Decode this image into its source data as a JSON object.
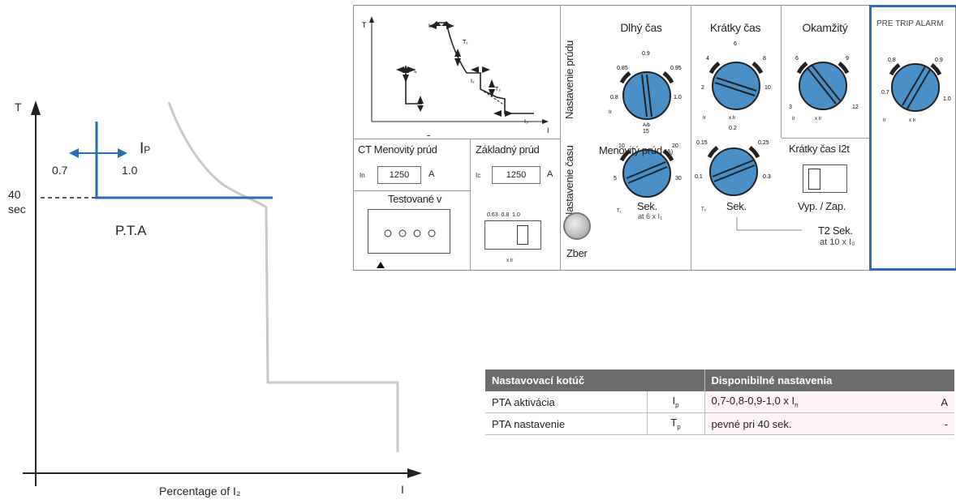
{
  "curve": {
    "y_axis": "T",
    "x_axis": "I",
    "x_label": "Percentage of I₂",
    "time_value": "40",
    "time_unit": "sec",
    "setting_low": "0.7",
    "setting_high": "1.0",
    "ip_label": "I",
    "ip_sub": "P",
    "region_label": "P.T.A"
  },
  "panel": {
    "mini_curve": {
      "t": "T",
      "i": "I",
      "labels": [
        "Iᵢ",
        "T₁",
        "Iᵣ",
        "I₂",
        "T₂",
        "Tᵣ",
        "I₃"
      ]
    },
    "dlhy_cas": "Dlhý čas",
    "kratky_cas": "Krátky čas",
    "okamzity": "Okamžitý",
    "pre_trip": "PRE TRIP ALARM",
    "nastavenie_prudu": "Nastavenie prúdu",
    "nastavenie_casu": "Nastavenie času",
    "menovity_prud": "Menovitý prúd",
    "menovity_unit": "(A)",
    "ct_menovity": "CT Menovitý prúd",
    "zakladny": "Základný prúd",
    "in_label": "In",
    "ib_label": "Ic",
    "ct_value": "1250",
    "zak_value": "1250",
    "amp": "A",
    "testovane": "Testované v",
    "zber": "Zber",
    "sek": "Sek.",
    "at6": "at 6 x I₁",
    "kratky_i2t": "Krátky čas I2t",
    "vyp_zap": "Vyp. / Zap.",
    "t2_sek": "T2 Sek.",
    "at10": "at 10 x I₀",
    "x_ir": "x Ir",
    "zak_scale": [
      "0.63",
      "0.8",
      "1.0"
    ],
    "dials": {
      "long_current": [
        "0.85",
        "0.9",
        "0.95",
        "0.8",
        "1.0"
      ],
      "long_current_sub": [
        "Ir",
        "A/b"
      ],
      "short_current": [
        "4",
        "6",
        "8",
        "2",
        "10"
      ],
      "short_current_sub": [
        "Ir",
        "x Ir"
      ],
      "instant": [
        "6",
        "9",
        "3",
        "12"
      ],
      "instant_sub": [
        "Ir",
        "x Ir"
      ],
      "pta": [
        "0.8",
        "0.9",
        "0.7",
        "1.0"
      ],
      "pta_sub": [
        "Ir",
        "x Ir"
      ],
      "long_time": [
        "10",
        "15",
        "20",
        "5",
        "30"
      ],
      "long_time_sub": "T₁",
      "short_time": [
        "0.15",
        "0.2",
        "0.25",
        "0.1",
        "0.3"
      ],
      "short_time_sub": "T₂"
    }
  },
  "table": {
    "header_left": "Nastavovací kotúč",
    "header_right": "Disponibilné nastavenia",
    "rows": [
      {
        "name": "PTA aktivácia",
        "sym": "I",
        "sub": "p",
        "value": "0,7-0,8-0,9-1,0 x I",
        "value_sub": "n",
        "unit": "A"
      },
      {
        "name": "PTA nastavenie",
        "sym": "T",
        "sub": "p",
        "value": "pevné pri 40 sek.",
        "value_sub": "",
        "unit": "-"
      }
    ]
  },
  "colors": {
    "blue": "#2b6cb0",
    "dial": "#4a90c8",
    "gray_curve": "#c8c8c8"
  }
}
